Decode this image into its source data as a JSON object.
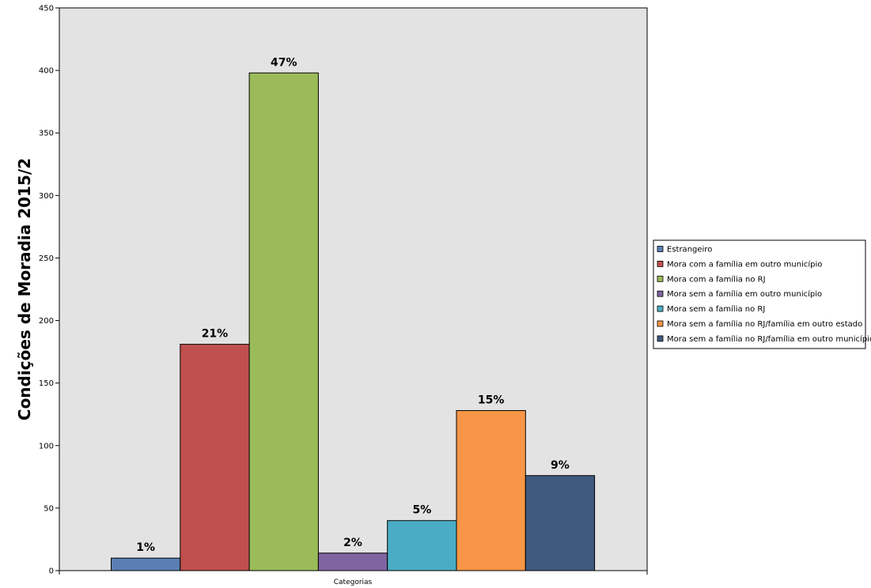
{
  "chart_data": {
    "type": "bar",
    "title": "",
    "xlabel": "Categorias",
    "ylabel": "Condições de Moradia 2015/2",
    "ylim": [
      0,
      450
    ],
    "yticks": [
      0,
      50,
      100,
      150,
      200,
      250,
      300,
      350,
      400,
      450
    ],
    "grid": false,
    "legend_position": "right",
    "background": "#e3e3e3",
    "series": [
      {
        "name": "Estrangeiro",
        "value": 10,
        "label": "1%",
        "color": "#5b7fb4"
      },
      {
        "name": "Mora com a família em outro município",
        "value": 181,
        "label": "21%",
        "color": "#c0504d"
      },
      {
        "name": "Mora com a família no RJ",
        "value": 398,
        "label": "47%",
        "color": "#9bbb59"
      },
      {
        "name": "Mora sem a família em outro município",
        "value": 14,
        "label": "2%",
        "color": "#8064a2"
      },
      {
        "name": "Mora sem a família no RJ",
        "value": 40,
        "label": "5%",
        "color": "#4bacc6"
      },
      {
        "name": "Mora sem a família no RJ/família em outro estado",
        "value": 128,
        "label": "15%",
        "color": "#f79646"
      },
      {
        "name": "Mora sem a família no RJ/família em outro município",
        "value": 76,
        "label": "9%",
        "color": "#3f5a7e"
      }
    ]
  }
}
